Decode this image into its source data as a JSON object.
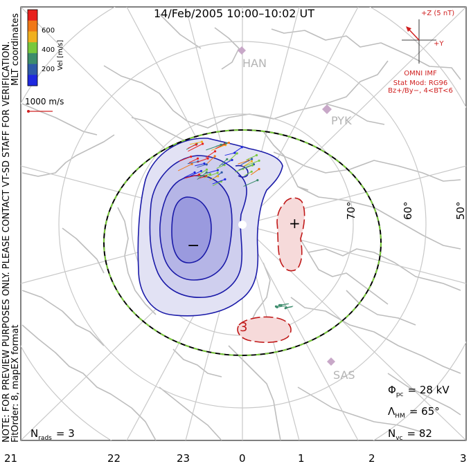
{
  "title": "14/Feb/2005 10:00–10:02 UT",
  "side_notes": {
    "coords": "MLT coordinates",
    "preview": "NOTE: FOR PREVIEW PURPOSES ONLY. PLEASE CONTACT VT-SD STAFF FOR VERIFICATION.",
    "fit": "FitOrder: 8, mapEX format"
  },
  "colorbar": {
    "label": "Vel [m/s]",
    "ticks": [
      "600",
      "400",
      "200"
    ],
    "colors": [
      "#e8201c",
      "#f07818",
      "#f0b020",
      "#78c83c",
      "#3c8c6c",
      "#2e5aa8",
      "#1e28e0"
    ]
  },
  "ref_vector": {
    "label": "1000 m/s",
    "color": "#d02020"
  },
  "imf": {
    "bz_label": "+Z (5 nT)",
    "by_label": "+Y",
    "source": "OMNI IMF",
    "model": "Stat Mod: RG96",
    "condition": "Bz+/By−, 4<BT<6",
    "color": "#d02020"
  },
  "stations": [
    {
      "name": "HAN"
    },
    {
      "name": "PYK"
    },
    {
      "name": "SAS"
    }
  ],
  "lat_labels": [
    "70°",
    "60°",
    "50°"
  ],
  "mlt_labels": [
    "21",
    "22",
    "23",
    "0",
    "1",
    "2",
    "3"
  ],
  "cells": {
    "negative_sign": "−",
    "positive_sign": "+",
    "contour_label": "3",
    "negative_color": "#1a1aa8",
    "positive_color": "#c01818"
  },
  "stats": {
    "phi_symbol": "Φ",
    "phi_sub": "pc",
    "phi_value": "= 28 kV",
    "lambda_symbol": "Λ",
    "lambda_sub": "HM",
    "lambda_value": "= 65°",
    "nvc_symbol": "N",
    "nvc_sub": "vc",
    "nvc_value": "= 82",
    "nrads_symbol": "N",
    "nrads_sub": "rads",
    "nrads_value": "= 3"
  }
}
